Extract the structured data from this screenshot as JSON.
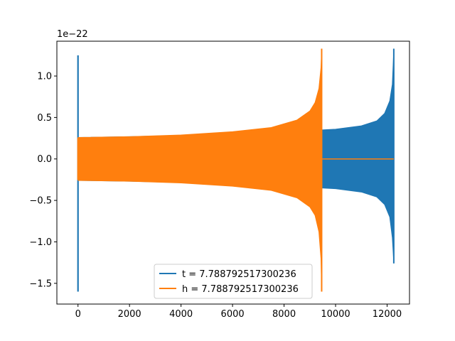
{
  "chart_data": {
    "type": "line",
    "title": "",
    "xlabel": "",
    "ylabel": "",
    "offset_text": "1e−22",
    "xlim": [
      -820,
      12870
    ],
    "ylim": [
      -1.75,
      1.42
    ],
    "xticks": [
      0,
      2000,
      4000,
      6000,
      8000,
      10000,
      12000
    ],
    "xtick_labels": [
      "0",
      "2000",
      "4000",
      "6000",
      "8000",
      "10000",
      "12000"
    ],
    "yticks": [
      -1.5,
      -1.0,
      -0.5,
      0.0,
      0.5,
      1.0
    ],
    "ytick_labels": [
      "−1.5",
      "−1.0",
      "−0.5",
      "0.0",
      "0.5",
      "1.0"
    ],
    "grid": false,
    "legend_position": "lower-center",
    "series": [
      {
        "name": "t = 7.788792517300236",
        "color": "#1f77b4",
        "spike_start": {
          "x": 0,
          "min": -1.6,
          "max": 1.25
        },
        "envelope_x": [
          0,
          2000,
          4000,
          6000,
          8000,
          9000,
          9400,
          10000,
          11000,
          11600,
          11900,
          12100,
          12200,
          12260
        ],
        "envelope_upper": [
          0.26,
          0.27,
          0.285,
          0.305,
          0.33,
          0.345,
          0.35,
          0.36,
          0.4,
          0.46,
          0.55,
          0.7,
          0.9,
          1.33
        ],
        "envelope_lower": [
          -0.26,
          -0.27,
          -0.285,
          -0.305,
          -0.33,
          -0.345,
          -0.35,
          -0.36,
          -0.4,
          -0.46,
          -0.55,
          -0.7,
          -0.95,
          -1.26
        ]
      },
      {
        "name": "h = 7.788792517300236",
        "color": "#ff7f0e",
        "spike_start": {
          "x": 0,
          "min": -0.25,
          "max": 0.25
        },
        "envelope_x": [
          0,
          2000,
          4000,
          6000,
          7500,
          8500,
          9000,
          9200,
          9350,
          9430,
          9460
        ],
        "envelope_upper": [
          0.26,
          0.27,
          0.29,
          0.33,
          0.38,
          0.47,
          0.58,
          0.68,
          0.85,
          1.1,
          1.33
        ],
        "envelope_lower": [
          -0.26,
          -0.27,
          -0.29,
          -0.33,
          -0.38,
          -0.47,
          -0.58,
          -0.68,
          -0.88,
          -1.2,
          -1.6
        ],
        "flat_line": {
          "x": [
            9460,
            12260
          ],
          "y": 0.0
        }
      }
    ]
  }
}
